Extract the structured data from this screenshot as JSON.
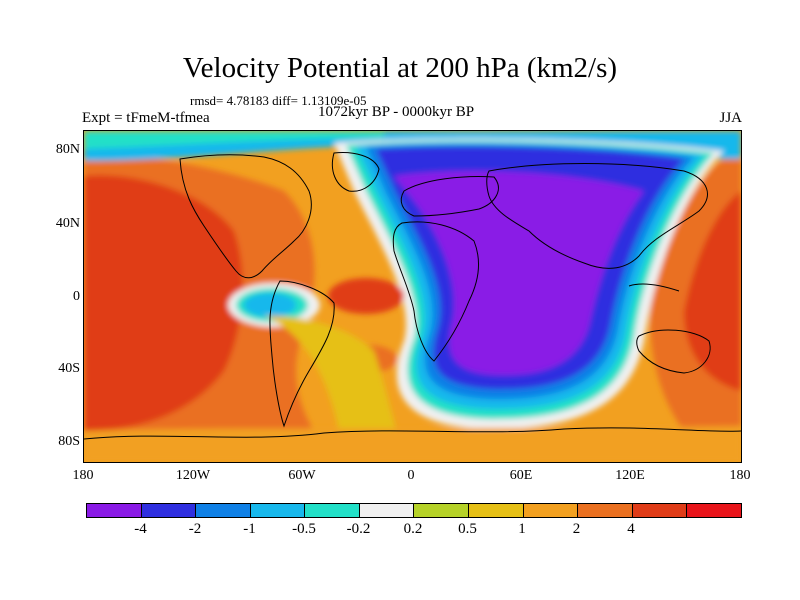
{
  "title": "Velocity Potential at 200 hPa (km2/s)",
  "stats": "rmsd= 4.78183 diff= 1.13109e-05",
  "experiment": "Expt = tFmeM-tfmea",
  "period": "1072kyr BP - 0000kyr BP",
  "season": "JJA",
  "lat_ticks": [
    "80N",
    "40N",
    "0",
    "40S",
    "80S"
  ],
  "lon_ticks": [
    "180",
    "120W",
    "60W",
    "0",
    "60E",
    "120E",
    "180"
  ],
  "colorbar": {
    "colors": [
      "#8a1ae6",
      "#2f2fe0",
      "#0f80e6",
      "#18b8ec",
      "#22e0c8",
      "#f0f0f0",
      "#b6d228",
      "#e6c016",
      "#f2a020",
      "#ea7020",
      "#e03c18",
      "#e8141a"
    ],
    "labels": [
      "-4",
      "-2",
      "-1",
      "-0.5",
      "-0.2",
      "0.2",
      "0.5",
      "1",
      "2",
      "4"
    ]
  }
}
